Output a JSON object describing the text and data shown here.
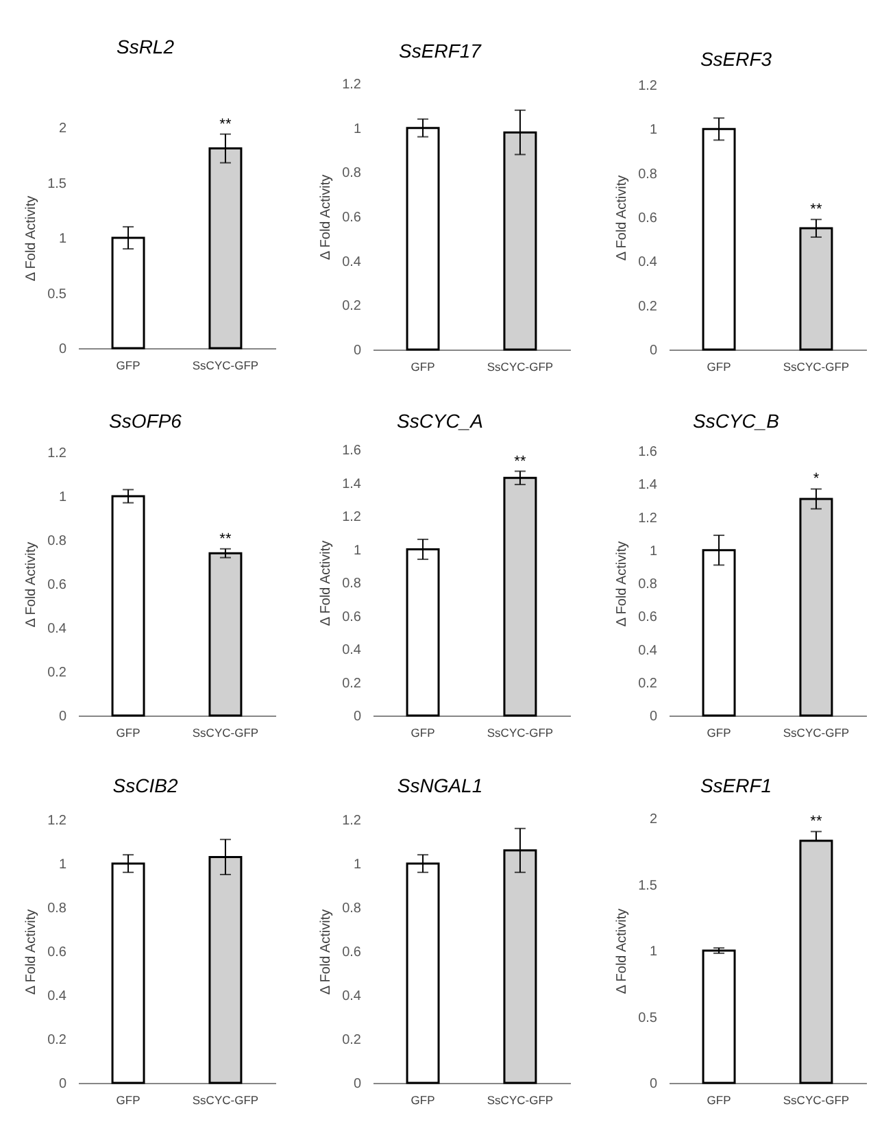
{
  "chart_data": [
    {
      "type": "bar",
      "title": "SsRL2",
      "ylabel": "Δ Fold Activity",
      "categories": [
        "GFP",
        "SsCYC-GFP"
      ],
      "values": [
        1,
        1.81
      ],
      "colors": [
        "#ffffff",
        "#d0d0d0"
      ],
      "errors": [
        0.1,
        0.13
      ],
      "ylim": [
        0,
        2
      ],
      "yticks": [
        0,
        0.5,
        1,
        1.5,
        2
      ],
      "grid": false,
      "annotations": [
        {
          "text": "**",
          "x": "SsCYC-GFP",
          "y": 1.94
        }
      ]
    },
    {
      "type": "bar",
      "title": "SsERF17",
      "ylabel": "Δ Fold Activity",
      "categories": [
        "GFP",
        "SsCYC-GFP"
      ],
      "values": [
        1,
        0.98
      ],
      "colors": [
        "#ffffff",
        "#d0d0d0"
      ],
      "errors": [
        0.04,
        0.1
      ],
      "ylim": [
        0,
        1.2
      ],
      "yticks": [
        0,
        0.2,
        0.4,
        0.6,
        0.8,
        1,
        1.2
      ],
      "grid": false
    },
    {
      "type": "bar",
      "title": "SsERF3",
      "ylabel": "Δ Fold Activity",
      "categories": [
        "GFP",
        "SsCYC-GFP"
      ],
      "values": [
        1,
        0.55
      ],
      "colors": [
        "#ffffff",
        "#d0d0d0"
      ],
      "errors": [
        0.05,
        0.04
      ],
      "ylim": [
        0,
        1.2
      ],
      "yticks": [
        0,
        0.2,
        0.4,
        0.6,
        0.8,
        1,
        1.2
      ],
      "grid": false,
      "annotations": [
        {
          "text": "**",
          "x": "SsCYC-GFP",
          "y": 0.59
        }
      ]
    },
    {
      "type": "bar",
      "title": "SsOFP6",
      "ylabel": "Δ Fold Activity",
      "categories": [
        "GFP",
        "SsCYC-GFP"
      ],
      "values": [
        1,
        0.74
      ],
      "colors": [
        "#ffffff",
        "#d0d0d0"
      ],
      "errors": [
        0.03,
        0.02
      ],
      "ylim": [
        0,
        1.2
      ],
      "yticks": [
        0,
        0.2,
        0.4,
        0.6,
        0.8,
        1,
        1.2
      ],
      "grid": false,
      "annotations": [
        {
          "text": "**",
          "x": "SsCYC-GFP",
          "y": 0.76
        }
      ]
    },
    {
      "type": "bar",
      "title": "SsCYC_A",
      "ylabel": "Δ Fold Activity",
      "categories": [
        "GFP",
        "SsCYC-GFP"
      ],
      "values": [
        1,
        1.43
      ],
      "colors": [
        "#ffffff",
        "#d0d0d0"
      ],
      "errors": [
        0.06,
        0.04
      ],
      "ylim": [
        0,
        1.6
      ],
      "yticks": [
        0,
        0.2,
        0.4,
        0.6,
        0.8,
        1,
        1.2,
        1.4,
        1.6
      ],
      "grid": false,
      "annotations": [
        {
          "text": "**",
          "x": "SsCYC-GFP",
          "y": 1.47
        }
      ]
    },
    {
      "type": "bar",
      "title": "SsCYC_B",
      "ylabel": "Δ Fold Activity",
      "categories": [
        "GFP",
        "SsCYC-GFP"
      ],
      "values": [
        1,
        1.31
      ],
      "colors": [
        "#ffffff",
        "#d0d0d0"
      ],
      "errors": [
        0.09,
        0.06
      ],
      "ylim": [
        0,
        1.6
      ],
      "yticks": [
        0,
        0.2,
        0.4,
        0.6,
        0.8,
        1,
        1.2,
        1.4,
        1.6
      ],
      "grid": false,
      "annotations": [
        {
          "text": "*",
          "x": "SsCYC-GFP",
          "y": 1.37
        }
      ]
    },
    {
      "type": "bar",
      "title": "SsCIB2",
      "ylabel": "Δ Fold Activity",
      "categories": [
        "GFP",
        "SsCYC-GFP"
      ],
      "values": [
        1,
        1.03
      ],
      "colors": [
        "#ffffff",
        "#d0d0d0"
      ],
      "errors": [
        0.04,
        0.08
      ],
      "ylim": [
        0,
        1.2
      ],
      "yticks": [
        0,
        0.2,
        0.4,
        0.6,
        0.8,
        1,
        1.2
      ],
      "grid": false
    },
    {
      "type": "bar",
      "title": "SsNGAL1",
      "ylabel": "Δ Fold Activity",
      "categories": [
        "GFP",
        "SsCYC-GFP"
      ],
      "values": [
        1,
        1.06
      ],
      "colors": [
        "#ffffff",
        "#d0d0d0"
      ],
      "errors": [
        0.04,
        0.1
      ],
      "ylim": [
        0,
        1.2
      ],
      "yticks": [
        0,
        0.2,
        0.4,
        0.6,
        0.8,
        1,
        1.2
      ],
      "grid": false
    },
    {
      "type": "bar",
      "title": "SsERF1",
      "ylabel": "Δ Fold Activity",
      "categories": [
        "GFP",
        "SsCYC-GFP"
      ],
      "values": [
        1,
        1.83
      ],
      "colors": [
        "#ffffff",
        "#d0d0d0"
      ],
      "errors": [
        0.02,
        [
          1.83,
          1.9
        ]
      ],
      "ylim": [
        0,
        2
      ],
      "yticks": [
        0,
        0.5,
        1,
        1.5,
        2
      ],
      "grid": false,
      "annotations": [
        {
          "text": "**",
          "x": "SsCYC-GFP",
          "y": 1.9
        }
      ]
    }
  ]
}
